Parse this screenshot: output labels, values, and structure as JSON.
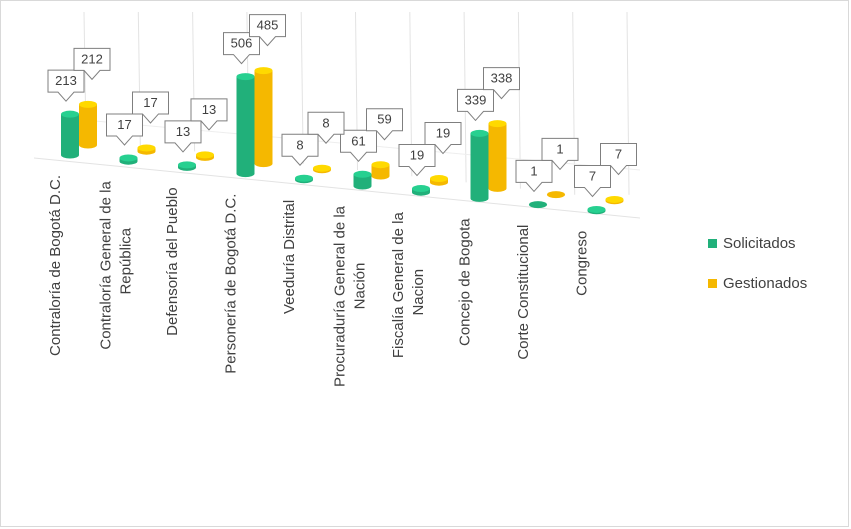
{
  "chart_data": {
    "type": "bar",
    "title": "",
    "categories": [
      [
        "Contraloría de Bogotá D.C."
      ],
      [
        "Contraloría General de la",
        "República"
      ],
      [
        "Defensoría del Pueblo"
      ],
      [
        "Personería de Bogotá D.C."
      ],
      [
        "Veeduría Distrital"
      ],
      [
        "Procuraduría General de la",
        "Nación"
      ],
      [
        "Fiscalía General de la",
        "Nacion"
      ],
      [
        "Concejo de Bogota"
      ],
      [
        "Corte Constitucional"
      ],
      [
        "Congreso"
      ]
    ],
    "series": [
      {
        "name": "Solicitados",
        "color": "#21b07a",
        "values": [
          213,
          17,
          13,
          506,
          8,
          61,
          19,
          339,
          1,
          7
        ]
      },
      {
        "name": "Gestionados",
        "color": "#f5b800",
        "values": [
          212,
          17,
          13,
          485,
          8,
          59,
          19,
          338,
          1,
          7
        ]
      }
    ],
    "legend_position": "right",
    "grid": true,
    "style": "3d-cylinder"
  }
}
